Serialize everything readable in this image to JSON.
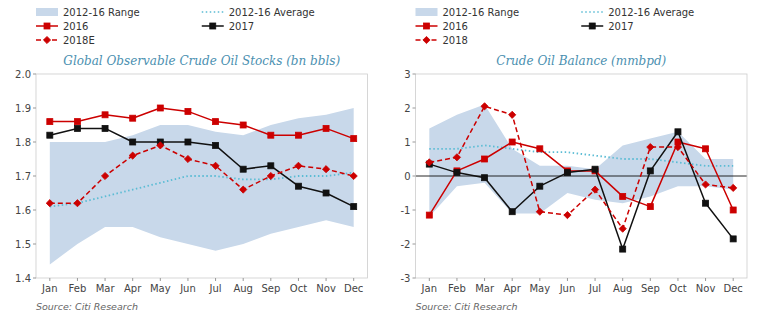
{
  "chart_data": [
    {
      "type": "line",
      "title": "Global Observable Crude Oil Stocks (bn bbls)",
      "annotations": [
        "Source: Citi Research"
      ],
      "categories": [
        "Jan",
        "Feb",
        "Mar",
        "Apr",
        "May",
        "Jun",
        "Jul",
        "Aug",
        "Sep",
        "Oct",
        "Nov",
        "Dec"
      ],
      "ylim": [
        1.4,
        2.0
      ],
      "yticks": [
        1.4,
        1.5,
        1.6,
        1.7,
        1.8,
        1.9,
        {
          "value": 2.0,
          "label": "2.0"
        }
      ],
      "grid": false,
      "legend": "top",
      "series": [
        {
          "name": "2012-16 Range",
          "type": "range",
          "color": "#c8d8ea",
          "low": [
            1.44,
            1.5,
            1.55,
            1.55,
            1.52,
            1.5,
            1.48,
            1.5,
            1.53,
            1.55,
            1.57,
            1.55
          ],
          "high": [
            1.8,
            1.8,
            1.8,
            1.82,
            1.85,
            1.85,
            1.83,
            1.82,
            1.85,
            1.87,
            1.88,
            1.9
          ]
        },
        {
          "name": "2012-16 Average",
          "type": "line",
          "color": "#5bbcd4",
          "line_style": "dotted",
          "values": [
            1.61,
            1.62,
            1.64,
            1.66,
            1.68,
            1.7,
            1.7,
            1.69,
            1.69,
            1.7,
            1.7,
            1.71
          ]
        },
        {
          "name": "2016",
          "type": "line",
          "color": "#cc0000",
          "line_style": "solid",
          "marker": "square",
          "values": [
            1.86,
            1.86,
            1.88,
            1.87,
            1.9,
            1.89,
            1.86,
            1.85,
            1.82,
            1.82,
            1.84,
            1.81
          ]
        },
        {
          "name": "2017",
          "type": "line",
          "color": "#111111",
          "line_style": "solid",
          "marker": "square",
          "values": [
            1.82,
            1.84,
            1.84,
            1.8,
            1.8,
            1.8,
            1.79,
            1.72,
            1.73,
            1.67,
            1.65,
            1.61
          ]
        },
        {
          "name": "2018E",
          "type": "line",
          "color": "#cc0000",
          "line_style": "dashed",
          "marker": "diamond",
          "values": [
            1.62,
            1.62,
            1.7,
            1.76,
            1.79,
            1.75,
            1.73,
            1.66,
            1.7,
            1.73,
            1.72,
            1.7
          ]
        }
      ]
    },
    {
      "type": "line",
      "title": "Crude Oil Balance (mmbpd)",
      "annotations": [
        "Source: Citi Research"
      ],
      "categories": [
        "Jan",
        "Feb",
        "Mar",
        "Apr",
        "May",
        "Jun",
        "Jul",
        "Aug",
        "Sep",
        "Oct",
        "Nov",
        "Dec"
      ],
      "ylim": [
        -3,
        3
      ],
      "yticks": [
        -3,
        -2,
        -1,
        0,
        1,
        2,
        3
      ],
      "grid": false,
      "legend": "top",
      "series": [
        {
          "name": "2012-16 Range",
          "type": "range",
          "color": "#c8d8ea",
          "low": [
            -1.2,
            -0.3,
            -0.2,
            -1.1,
            -1.1,
            -0.5,
            -0.7,
            -0.8,
            -0.6,
            -0.3,
            -0.3,
            -0.4
          ],
          "high": [
            1.4,
            1.8,
            2.1,
            0.8,
            0.3,
            0.3,
            0.2,
            0.9,
            1.1,
            1.3,
            0.5,
            0.5
          ]
        },
        {
          "name": "2012-16 Average",
          "type": "line",
          "color": "#5bbcd4",
          "line_style": "dotted",
          "values": [
            0.8,
            0.8,
            0.9,
            0.8,
            0.7,
            0.7,
            0.6,
            0.5,
            0.5,
            0.4,
            0.3,
            0.3
          ]
        },
        {
          "name": "2016",
          "type": "line",
          "color": "#cc0000",
          "line_style": "solid",
          "marker": "square",
          "values": [
            -1.15,
            0.15,
            0.5,
            1.0,
            0.8,
            0.15,
            0.15,
            -0.6,
            -0.9,
            1.0,
            0.8,
            -1.0
          ]
        },
        {
          "name": "2017",
          "type": "line",
          "color": "#111111",
          "line_style": "solid",
          "marker": "square",
          "values": [
            0.35,
            0.1,
            -0.05,
            -1.05,
            -0.3,
            0.1,
            0.2,
            -2.15,
            0.15,
            1.3,
            -0.8,
            -1.85
          ]
        },
        {
          "name": "2018",
          "type": "line",
          "color": "#cc0000",
          "line_style": "dashed",
          "marker": "diamond",
          "values": [
            0.4,
            0.55,
            2.05,
            1.8,
            -1.05,
            -1.15,
            -0.4,
            -1.55,
            0.85,
            0.85,
            -0.25,
            -0.35
          ]
        }
      ]
    }
  ]
}
